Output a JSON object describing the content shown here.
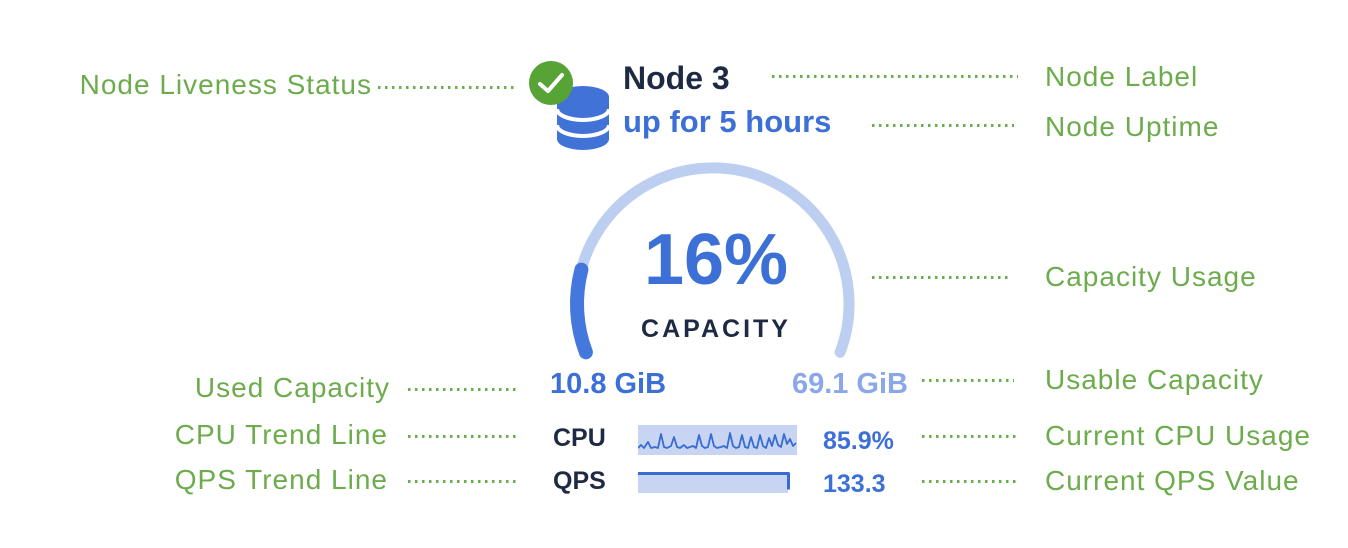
{
  "colors": {
    "annotation_green": "#6dac4c",
    "navy_text": "#1e2a44",
    "primary_blue_text": "#3d70d6",
    "light_blue_text": "#8aa7e8",
    "gauge_track": "#bdcff1",
    "gauge_fill": "#4478dc",
    "sparkline_background": "#c7d5f3",
    "sparkline_line": "#3a6bd0",
    "status_icon_green": "#57a336",
    "database_icon_blue": "#4173d6"
  },
  "annotations": {
    "left": [
      {
        "label": "Node Liveness Status"
      },
      {
        "label": "Used Capacity"
      },
      {
        "label": "CPU Trend Line"
      },
      {
        "label": "QPS Trend Line"
      }
    ],
    "right": [
      {
        "label": "Node Label"
      },
      {
        "label": "Node Uptime"
      },
      {
        "label": "Capacity Usage"
      },
      {
        "label": "Usable Capacity"
      },
      {
        "label": "Current CPU Usage"
      },
      {
        "label": "Current QPS Value"
      }
    ]
  },
  "node": {
    "status_icon": "check-circle-icon",
    "node_icon": "database-icon",
    "label": "Node 3",
    "uptime": "up for 5 hours",
    "capacity_gauge": {
      "percent": 16,
      "percent_label": "16%",
      "caption": "CAPACITY",
      "used": "10.8 GiB",
      "usable": "69.1 GiB",
      "start_angle": 159.2,
      "sweep_deg": 221.6
    },
    "metrics": [
      {
        "name": "CPU",
        "value": "85.9%"
      },
      {
        "name": "QPS",
        "value": "133.3"
      }
    ]
  }
}
